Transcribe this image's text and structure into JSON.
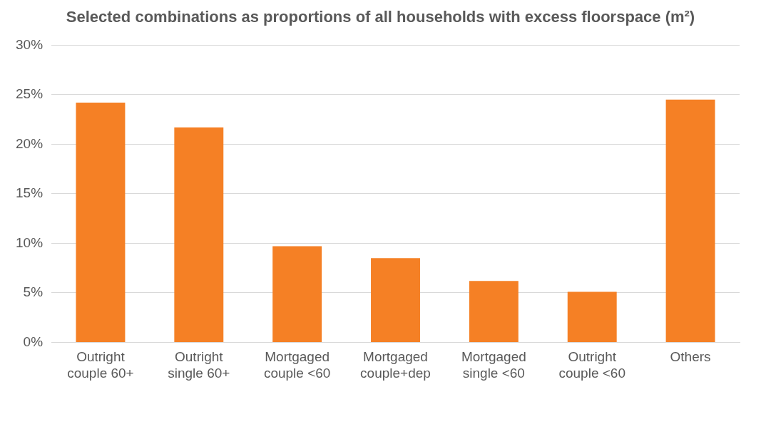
{
  "chart_data": {
    "type": "bar",
    "title": "Selected combinations as proportions of all households with excess floorspace (m²)",
    "categories": [
      "Outright couple 60+",
      "Outright single 60+",
      "Mortgaged couple <60",
      "Mortgaged couple+dep",
      "Mortgaged single <60",
      "Outright couple <60",
      "Others"
    ],
    "values": [
      24.2,
      21.7,
      9.7,
      8.5,
      6.2,
      5.1,
      24.5
    ],
    "color": "#f58025",
    "ylim": [
      0,
      30
    ],
    "yticks": [
      {
        "value": 0,
        "label": "0%"
      },
      {
        "value": 5,
        "label": "5%"
      },
      {
        "value": 10,
        "label": "10%"
      },
      {
        "value": 15,
        "label": "15%"
      },
      {
        "value": 20,
        "label": "20%"
      },
      {
        "value": 25,
        "label": "25%"
      },
      {
        "value": 30,
        "label": "30%"
      }
    ],
    "grid": "y"
  }
}
